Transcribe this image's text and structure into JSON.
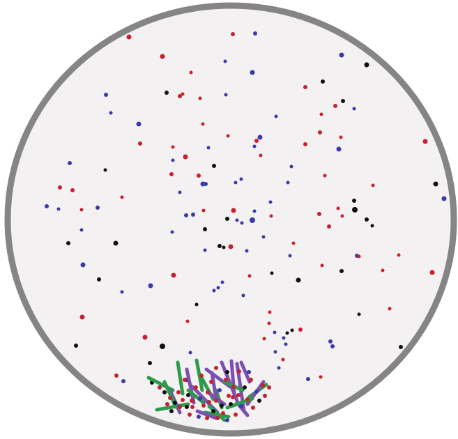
{
  "colors": {
    "background": "#ffffff",
    "dish_fill": "#f4f1f2",
    "dish_border": "#858585",
    "red": "#c8202e",
    "blue": "#3a3aa8",
    "black": "#101010",
    "green": "#2e9a4e",
    "purple": "#7d4fb0"
  },
  "particle_types": [
    "red-particle",
    "blue-particle",
    "black-particle"
  ],
  "rod_types": [
    "green-rod",
    "purple-rod"
  ]
}
